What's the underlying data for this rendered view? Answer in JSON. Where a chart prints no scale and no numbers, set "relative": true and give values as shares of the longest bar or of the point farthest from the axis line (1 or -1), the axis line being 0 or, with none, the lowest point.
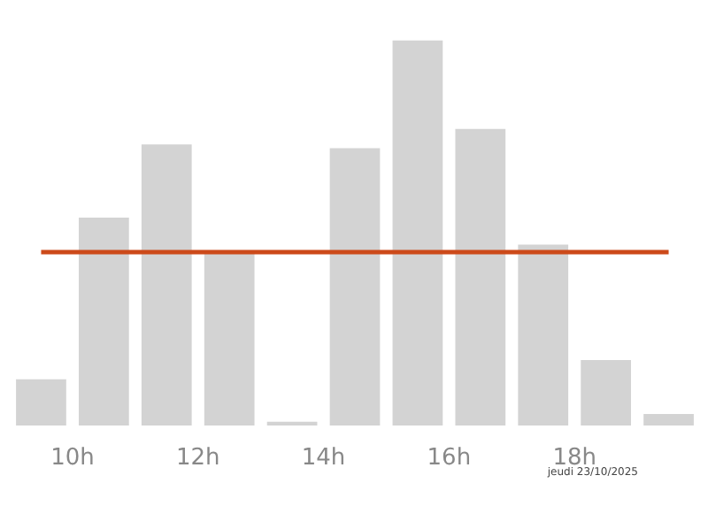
{
  "chart_data": {
    "type": "bar",
    "relative": true,
    "x": [
      9.5,
      10.5,
      11.5,
      12.5,
      13.5,
      14.5,
      15.5,
      16.5,
      17.5,
      18.5,
      19.5
    ],
    "values": [
      0.12,
      0.54,
      0.73,
      0.45,
      0.01,
      0.72,
      1,
      0.77,
      0.47,
      0.17,
      0.03
    ],
    "color": "#d3d3d3",
    "xlim": [
      9,
      20
    ],
    "xticks": [
      {
        "value": 10,
        "label": "10h"
      },
      {
        "value": 12,
        "label": "12h"
      },
      {
        "value": 14,
        "label": "14h"
      },
      {
        "value": 16,
        "label": "16h"
      },
      {
        "value": 18,
        "label": "18h"
      }
    ],
    "ref_lines": [
      {
        "axis": "y",
        "value": 0.45,
        "color": "#cc4a1a"
      }
    ],
    "grid": false,
    "tick_labels": "x",
    "annotations": [
      "jeudi 23/10/2025"
    ]
  }
}
